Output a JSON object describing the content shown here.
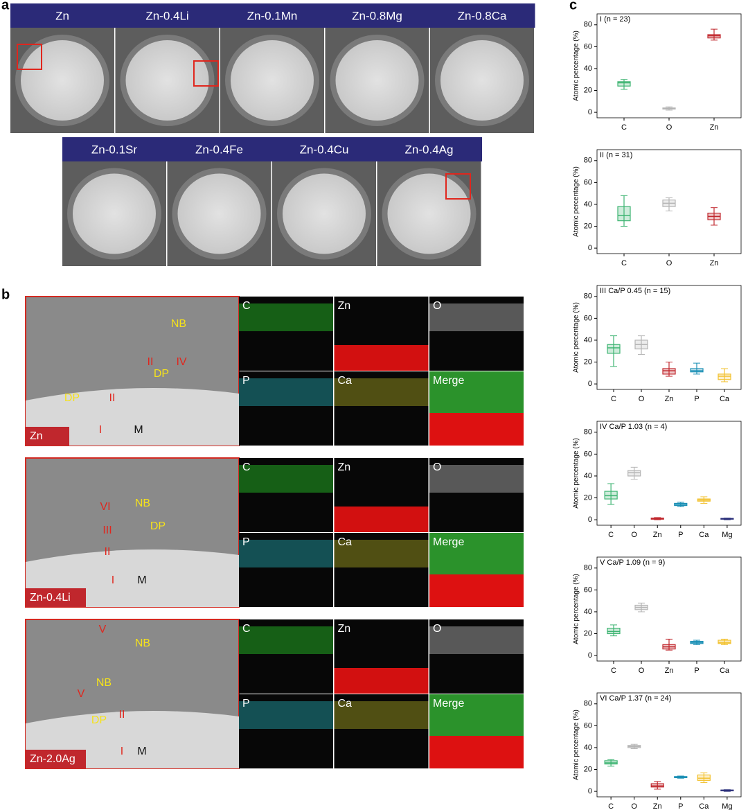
{
  "panel_a": {
    "label": "a",
    "titles": [
      "Zn",
      "Zn-0.4Li",
      "Zn-0.1Mn",
      "Zn-0.8Mg",
      "Zn-0.8Ca",
      "Zn-0.1Sr",
      "Zn-0.4Fe",
      "Zn-0.4Cu",
      "Zn-0.4Ag"
    ]
  },
  "panel_b": {
    "label": "b",
    "maps": [
      "C",
      "Zn",
      "O",
      "P",
      "Ca",
      "Merge"
    ],
    "rows": [
      {
        "sample": "Zn",
        "annotations": [
          {
            "text": "NB",
            "color": "#f5e21b"
          },
          {
            "text": "II",
            "color": "#e0261d"
          },
          {
            "text": "IV",
            "color": "#e0261d"
          },
          {
            "text": "DP",
            "color": "#f5e21b"
          },
          {
            "text": "DP",
            "color": "#f5e21b"
          },
          {
            "text": "II",
            "color": "#e0261d"
          },
          {
            "text": "I",
            "color": "#e0261d"
          },
          {
            "text": "M",
            "color": "#111111"
          }
        ]
      },
      {
        "sample": "Zn-0.4Li",
        "annotations": [
          {
            "text": "VI",
            "color": "#e0261d"
          },
          {
            "text": "NB",
            "color": "#f5e21b"
          },
          {
            "text": "DP",
            "color": "#f5e21b"
          },
          {
            "text": "III",
            "color": "#e0261d"
          },
          {
            "text": "II",
            "color": "#e0261d"
          },
          {
            "text": "I",
            "color": "#e0261d"
          },
          {
            "text": "M",
            "color": "#111111"
          }
        ]
      },
      {
        "sample": "Zn-2.0Ag",
        "annotations": [
          {
            "text": "V",
            "color": "#e0261d"
          },
          {
            "text": "NB",
            "color": "#f5e21b"
          },
          {
            "text": "V",
            "color": "#e0261d"
          },
          {
            "text": "NB",
            "color": "#f5e21b"
          },
          {
            "text": "DP",
            "color": "#f5e21b"
          },
          {
            "text": "II",
            "color": "#e0261d"
          },
          {
            "text": "I",
            "color": "#e0261d"
          },
          {
            "text": "M",
            "color": "#111111"
          }
        ]
      }
    ]
  },
  "panel_c": {
    "label": "c",
    "charts": [
      {
        "type": "box",
        "title": "I (n = 23)",
        "ylabel": "Atomic percentage (%)",
        "ylim": [
          -5,
          90
        ],
        "yticks": [
          0,
          20,
          40,
          60,
          80
        ],
        "categories": [
          "C",
          "O",
          "Zn"
        ],
        "colors": [
          "#3cb371",
          "#b5b5b5",
          "#c0272d"
        ],
        "boxes": [
          {
            "min": 21,
            "q1": 24,
            "median": 27,
            "q3": 28,
            "max": 30
          },
          {
            "min": 2,
            "q1": 3,
            "median": 3.5,
            "q3": 4,
            "max": 5
          },
          {
            "min": 66,
            "q1": 68,
            "median": 70,
            "q3": 71,
            "max": 76
          }
        ]
      },
      {
        "type": "box",
        "title": "II (n = 31)",
        "ylabel": "Atomic percentage (%)",
        "ylim": [
          -5,
          90
        ],
        "yticks": [
          0,
          20,
          40,
          60,
          80
        ],
        "categories": [
          "C",
          "O",
          "Zn"
        ],
        "colors": [
          "#3cb371",
          "#b5b5b5",
          "#c0272d"
        ],
        "boxes": [
          {
            "min": 20,
            "q1": 25,
            "median": 30,
            "q3": 38,
            "max": 48
          },
          {
            "min": 34,
            "q1": 38,
            "median": 41,
            "q3": 44,
            "max": 46
          },
          {
            "min": 21,
            "q1": 26,
            "median": 29,
            "q3": 32,
            "max": 37
          }
        ]
      },
      {
        "type": "box",
        "title": "III Ca/P 0.45 (n = 15)",
        "ylabel": "Atomic percentage (%)",
        "ylim": [
          -5,
          90
        ],
        "yticks": [
          0,
          20,
          40,
          60,
          80
        ],
        "categories": [
          "C",
          "O",
          "Zn",
          "P",
          "Ca"
        ],
        "colors": [
          "#3cb371",
          "#b5b5b5",
          "#c0272d",
          "#1a8fb5",
          "#f2c12e"
        ],
        "boxes": [
          {
            "min": 16,
            "q1": 28,
            "median": 33,
            "q3": 36,
            "max": 44
          },
          {
            "min": 27,
            "q1": 32,
            "median": 36,
            "q3": 40,
            "max": 44
          },
          {
            "min": 7,
            "q1": 9,
            "median": 12,
            "q3": 14,
            "max": 20
          },
          {
            "min": 9,
            "q1": 11,
            "median": 12,
            "q3": 14,
            "max": 19
          },
          {
            "min": 2,
            "q1": 4,
            "median": 7,
            "q3": 9,
            "max": 14
          }
        ]
      },
      {
        "type": "box",
        "title": "IV Ca/P 1.03 (n = 4)",
        "ylabel": "Atomic percentage (%)",
        "ylim": [
          -5,
          90
        ],
        "yticks": [
          0,
          20,
          40,
          60,
          80
        ],
        "categories": [
          "C",
          "O",
          "Zn",
          "P",
          "Ca",
          "Mg"
        ],
        "colors": [
          "#3cb371",
          "#b5b5b5",
          "#c0272d",
          "#1a8fb5",
          "#f2c12e",
          "#2a2f7a"
        ],
        "boxes": [
          {
            "min": 14,
            "q1": 19,
            "median": 22,
            "q3": 26,
            "max": 33
          },
          {
            "min": 37,
            "q1": 40,
            "median": 43,
            "q3": 45,
            "max": 48
          },
          {
            "min": 0,
            "q1": 0.5,
            "median": 1,
            "q3": 1.5,
            "max": 2
          },
          {
            "min": 12,
            "q1": 13,
            "median": 14,
            "q3": 15,
            "max": 16
          },
          {
            "min": 15,
            "q1": 17,
            "median": 18,
            "q3": 19,
            "max": 21
          },
          {
            "min": 0,
            "q1": 0.5,
            "median": 1,
            "q3": 1.2,
            "max": 1.5
          }
        ]
      },
      {
        "type": "box",
        "title": "V Ca/P 1.09 (n = 9)",
        "ylabel": "Atomic percentage (%)",
        "ylim": [
          -5,
          90
        ],
        "yticks": [
          0,
          20,
          40,
          60,
          80
        ],
        "categories": [
          "C",
          "O",
          "Zn",
          "P",
          "Ca"
        ],
        "colors": [
          "#3cb371",
          "#b5b5b5",
          "#c0272d",
          "#1a8fb5",
          "#f2c12e"
        ],
        "boxes": [
          {
            "min": 18,
            "q1": 20,
            "median": 22,
            "q3": 25,
            "max": 28
          },
          {
            "min": 40,
            "q1": 42,
            "median": 44,
            "q3": 46,
            "max": 48
          },
          {
            "min": 5,
            "q1": 6,
            "median": 8,
            "q3": 10,
            "max": 15
          },
          {
            "min": 10,
            "q1": 11,
            "median": 12,
            "q3": 13,
            "max": 14
          },
          {
            "min": 10,
            "q1": 11,
            "median": 12,
            "q3": 14,
            "max": 15
          }
        ]
      },
      {
        "type": "box",
        "title": "VI Ca/P 1.37 (n = 24)",
        "ylabel": "Atomic percentage (%)",
        "ylim": [
          -5,
          90
        ],
        "yticks": [
          0,
          20,
          40,
          60,
          80
        ],
        "categories": [
          "C",
          "O",
          "Zn",
          "P",
          "Ca",
          "Mg"
        ],
        "colors": [
          "#3cb371",
          "#b5b5b5",
          "#c0272d",
          "#1a8fb5",
          "#f2c12e",
          "#2a2f7a"
        ],
        "boxes": [
          {
            "min": 23,
            "q1": 25,
            "median": 26,
            "q3": 28,
            "max": 29
          },
          {
            "min": 39,
            "q1": 40,
            "median": 41,
            "q3": 42,
            "max": 43
          },
          {
            "min": 2,
            "q1": 4,
            "median": 5,
            "q3": 7,
            "max": 9
          },
          {
            "min": 12,
            "q1": 12.5,
            "median": 13,
            "q3": 13.5,
            "max": 14
          },
          {
            "min": 8,
            "q1": 10,
            "median": 12,
            "q3": 15,
            "max": 17
          },
          {
            "min": 0,
            "q1": 0.5,
            "median": 1,
            "q3": 1.2,
            "max": 1.5
          }
        ]
      }
    ]
  }
}
